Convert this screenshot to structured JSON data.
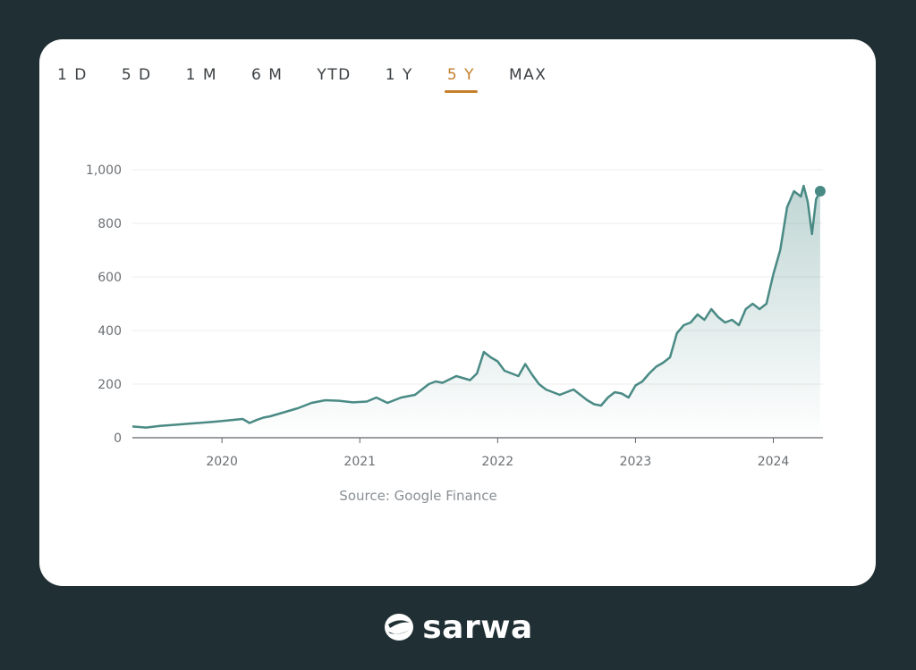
{
  "ranges": [
    {
      "label": "1 D",
      "active": false
    },
    {
      "label": "5 D",
      "active": false
    },
    {
      "label": "1 M",
      "active": false
    },
    {
      "label": "6 M",
      "active": false
    },
    {
      "label": "YTD",
      "active": false
    },
    {
      "label": "1 Y",
      "active": false
    },
    {
      "label": "5 Y",
      "active": true
    },
    {
      "label": "MAX",
      "active": false
    }
  ],
  "source": "Source: Google Finance",
  "brand": "sarwa",
  "colors": {
    "line": "#4a8a85",
    "active": "#c57f2c",
    "background": "#1f2f33"
  },
  "chart_data": {
    "type": "area",
    "x_ticks": [
      "2020",
      "2021",
      "2022",
      "2023",
      "2024"
    ],
    "y_ticks": [
      "0",
      "200",
      "400",
      "600",
      "800",
      "1,000"
    ],
    "ylim": [
      0,
      1000
    ],
    "xlim": [
      2019.35,
      2024.36
    ],
    "grid": true,
    "series": [
      {
        "x": [
          2019.35,
          2019.45,
          2019.55,
          2019.65,
          2019.75,
          2019.85,
          2019.95,
          2020.05,
          2020.15,
          2020.2,
          2020.25,
          2020.3,
          2020.35,
          2020.45,
          2020.55,
          2020.65,
          2020.75,
          2020.85,
          2020.95,
          2021.05,
          2021.12,
          2021.2,
          2021.3,
          2021.4,
          2021.5,
          2021.55,
          2021.6,
          2021.7,
          2021.8,
          2021.85,
          2021.9,
          2021.95,
          2022.0,
          2022.05,
          2022.1,
          2022.15,
          2022.2,
          2022.25,
          2022.3,
          2022.35,
          2022.4,
          2022.45,
          2022.5,
          2022.55,
          2022.6,
          2022.65,
          2022.7,
          2022.75,
          2022.8,
          2022.85,
          2022.9,
          2022.95,
          2023.0,
          2023.05,
          2023.1,
          2023.15,
          2023.2,
          2023.25,
          2023.3,
          2023.35,
          2023.4,
          2023.45,
          2023.5,
          2023.55,
          2023.6,
          2023.65,
          2023.7,
          2023.75,
          2023.8,
          2023.85,
          2023.9,
          2023.95,
          2024.0,
          2024.05,
          2024.1,
          2024.15,
          2024.2,
          2024.22,
          2024.25,
          2024.28,
          2024.31,
          2024.34
        ],
        "values": [
          42,
          38,
          44,
          48,
          52,
          56,
          60,
          65,
          70,
          55,
          66,
          75,
          80,
          95,
          110,
          130,
          140,
          138,
          132,
          135,
          150,
          130,
          150,
          160,
          200,
          210,
          205,
          230,
          215,
          240,
          320,
          300,
          285,
          250,
          240,
          230,
          275,
          235,
          200,
          180,
          170,
          160,
          170,
          180,
          160,
          140,
          125,
          120,
          150,
          170,
          165,
          150,
          195,
          210,
          240,
          265,
          280,
          300,
          390,
          420,
          430,
          460,
          440,
          480,
          450,
          430,
          440,
          420,
          480,
          500,
          480,
          500,
          610,
          700,
          860,
          920,
          900,
          940,
          880,
          760,
          890,
          920
        ]
      }
    ]
  }
}
